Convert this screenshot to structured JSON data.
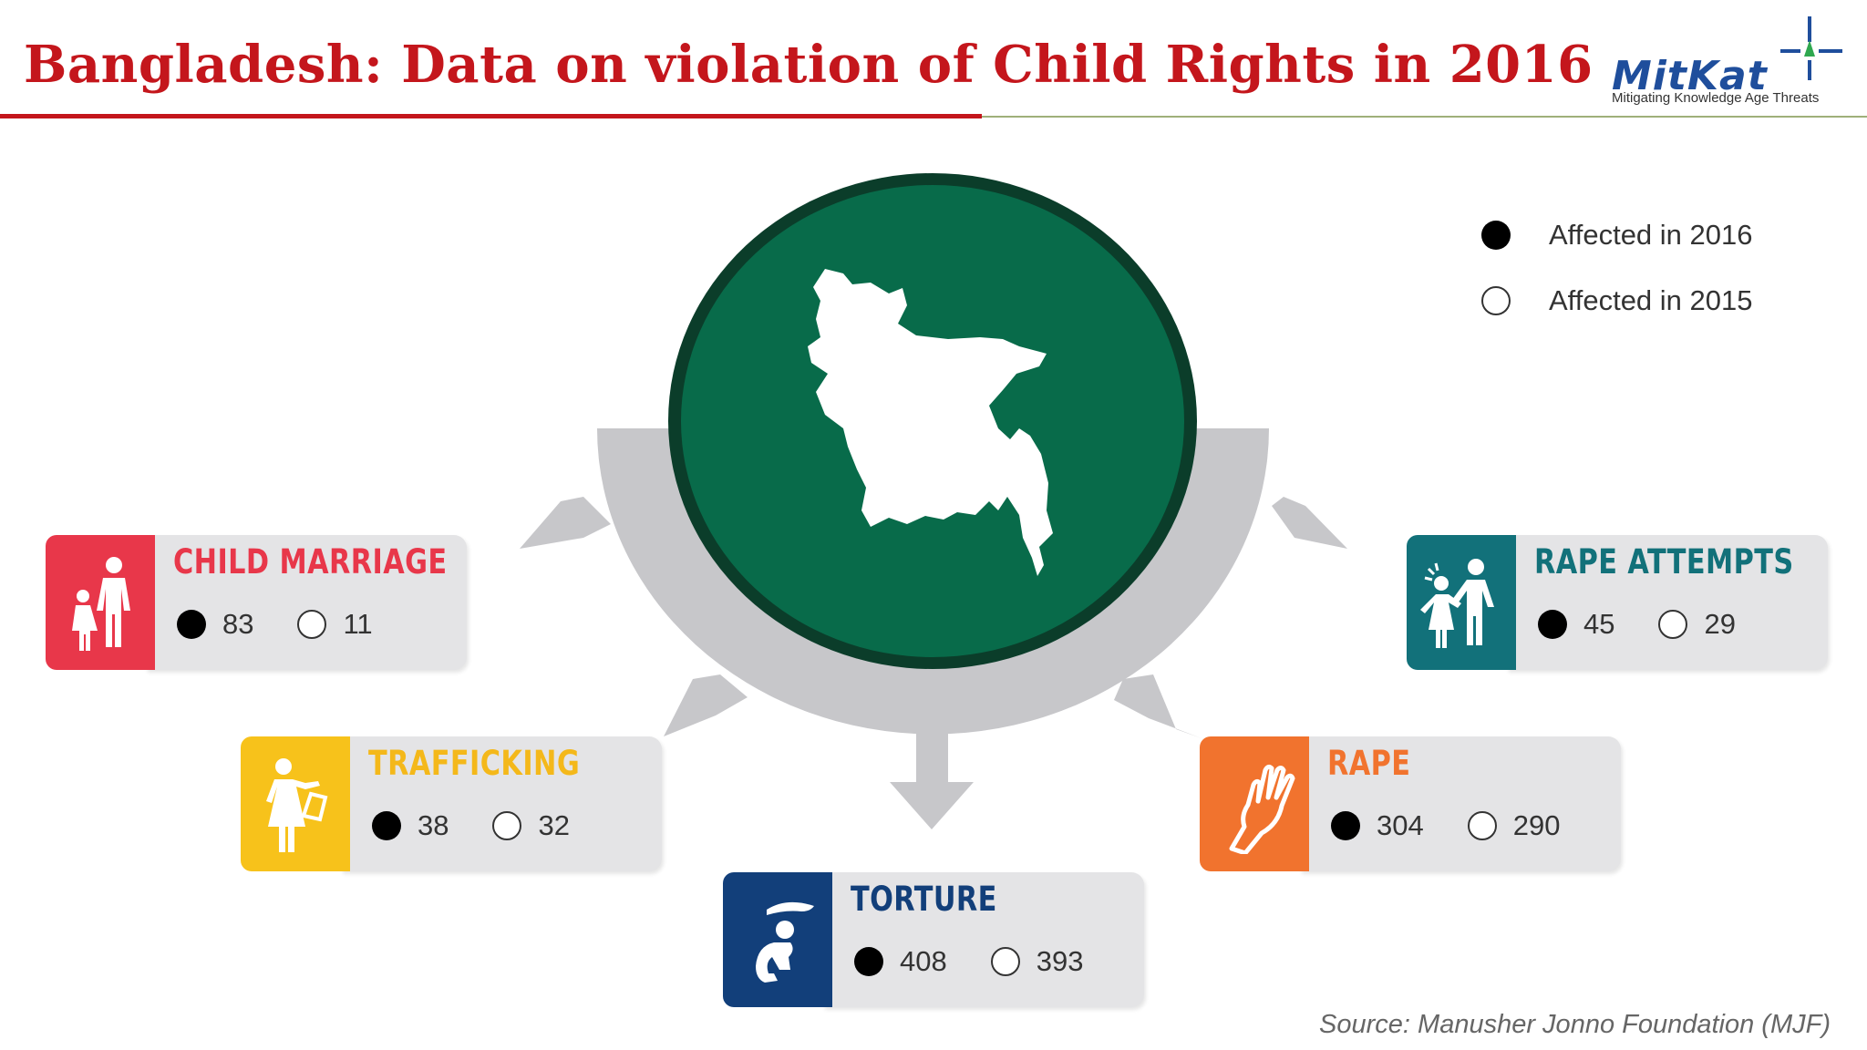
{
  "header": {
    "title": "Bangladesh: Data on violation of Child Rights in 2016",
    "logo_name": "MitKat",
    "logo_tagline": "Mitigating Knowledge Age Threats"
  },
  "legend": {
    "filled_label": "Affected in 2016",
    "empty_label": "Affected in 2015"
  },
  "categories": [
    {
      "key": "child-marriage",
      "label": "CHILD MARRIAGE",
      "v2016": "83",
      "v2015": "11",
      "color": "#e8374a",
      "icon": "family-icon"
    },
    {
      "key": "trafficking",
      "label": "TRAFFICKING",
      "v2016": "38",
      "v2015": "32",
      "color": "#f7c21b",
      "icon": "woman-with-bag-icon"
    },
    {
      "key": "torture",
      "label": "TORTURE",
      "v2016": "408",
      "v2015": "393",
      "color": "#123f7a",
      "icon": "crouching-child-icon"
    },
    {
      "key": "rape",
      "label": "RAPE",
      "v2016": "304",
      "v2015": "290",
      "color": "#f1732e",
      "icon": "raised-hand-icon"
    },
    {
      "key": "rape-attempts",
      "label": "RAPE ATTEMPTS",
      "v2016": "45",
      "v2015": "29",
      "color": "#12717a",
      "icon": "two-people-icon"
    }
  ],
  "colors": {
    "title_red": "#c4161c",
    "circle_green": "#086b4a",
    "circle_ring": "#0b3d2a",
    "arc_gray": "#c7c7ca",
    "card_gray": "#e4e4e6"
  },
  "source": "Source: Manusher Jonno Foundation (MJF)"
}
